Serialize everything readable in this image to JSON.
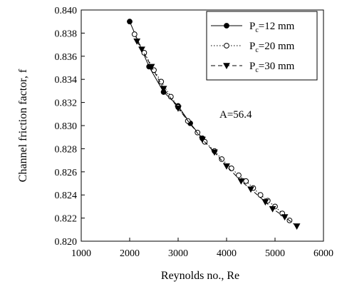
{
  "chart_data": {
    "type": "line",
    "xlabel": "Reynolds no., Re",
    "ylabel": "Channel friction factor, f",
    "xlim": [
      1000,
      6000
    ],
    "ylim": [
      0.82,
      0.84
    ],
    "xticks": [
      "1000",
      "2000",
      "3000",
      "4000",
      "5000",
      "6000"
    ],
    "yticks": [
      "0.820",
      "0.822",
      "0.824",
      "0.826",
      "0.828",
      "0.830",
      "0.832",
      "0.834",
      "0.836",
      "0.838",
      "0.840"
    ],
    "grid": false,
    "legend_position": "top-right",
    "annotation": "A=56.4",
    "series": [
      {
        "name": "Pc=12 mm",
        "name_main": "P",
        "name_sub": "c",
        "name_rest": "=12 mm",
        "line": "solid",
        "marker": "filled-circle",
        "x": [
          2000,
          2400,
          2700,
          3000,
          3250,
          3500
        ],
        "y": [
          0.839,
          0.8351,
          0.8329,
          0.8317,
          0.8302,
          0.8289
        ]
      },
      {
        "name": "Pc=20 mm",
        "name_main": "P",
        "name_sub": "c",
        "name_rest": "=20 mm",
        "line": "dotted",
        "marker": "open-circle",
        "x": [
          2100,
          2300,
          2500,
          2650,
          2850,
          3000,
          3200,
          3400,
          3550,
          3750,
          3900,
          4100,
          4250,
          4400,
          4550,
          4700,
          4850,
          5000,
          5150,
          5300
        ],
        "y": [
          0.8379,
          0.8363,
          0.8348,
          0.8338,
          0.8325,
          0.8316,
          0.8304,
          0.8294,
          0.8286,
          0.8278,
          0.8271,
          0.8263,
          0.8257,
          0.8252,
          0.8246,
          0.824,
          0.8235,
          0.823,
          0.8224,
          0.8218
        ]
      },
      {
        "name": "Pc=30 mm",
        "name_main": "P",
        "name_sub": "c",
        "name_rest": "=30 mm",
        "line": "dashed",
        "marker": "filled-triangle-down",
        "x": [
          2150,
          2250,
          2450,
          2700,
          3000,
          3500,
          3750,
          4000,
          4300,
          4500,
          4800,
          4950,
          5200,
          5450
        ],
        "y": [
          0.8373,
          0.8366,
          0.8351,
          0.8332,
          0.8315,
          0.8288,
          0.8277,
          0.8265,
          0.8252,
          0.8245,
          0.8234,
          0.8228,
          0.8221,
          0.8213
        ]
      }
    ]
  }
}
